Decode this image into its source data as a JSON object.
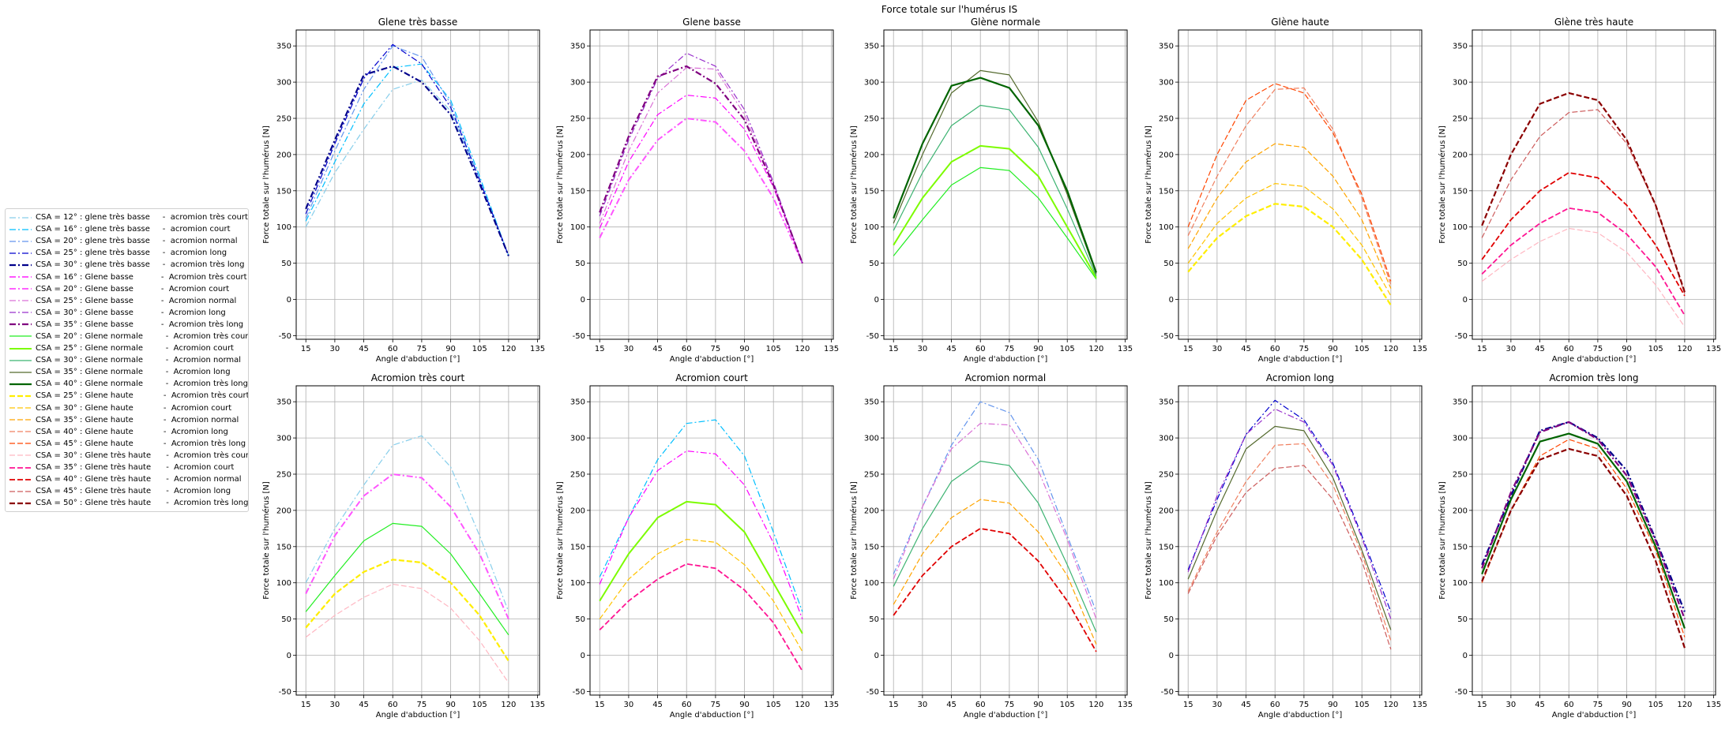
{
  "chart_data": {
    "type": "line",
    "suptitle": "Force totale sur l'humérus IS",
    "xlabel": "Angle d'abduction [°]",
    "ylabel": "Force totale sur l'humérus [N]",
    "xticks": [
      15,
      30,
      45,
      60,
      75,
      90,
      105,
      120,
      135
    ],
    "yticks": [
      -50,
      0,
      50,
      100,
      150,
      200,
      250,
      300,
      350
    ],
    "xlim": [
      10,
      136
    ],
    "ylim": [
      -55,
      372
    ],
    "grid": true,
    "legend_position": "left, outside plots",
    "x": [
      15,
      30,
      45,
      60,
      75,
      90,
      105,
      120
    ],
    "series": [
      {
        "name": "CSA = 12° : glene très basse     -  acromion très court",
        "color": "#87ceeb",
        "style": "dashdot",
        "width": 1.2,
        "row": 0,
        "col": 0,
        "values": [
          100,
          175,
          235,
          290,
          303,
          260,
          165,
          60
        ]
      },
      {
        "name": "CSA = 16° : glene très basse     -  acromion court",
        "color": "#00bfff",
        "style": "dashdot",
        "width": 1.2,
        "row": 0,
        "col": 1,
        "values": [
          108,
          190,
          270,
          320,
          325,
          275,
          170,
          60
        ]
      },
      {
        "name": "CSA = 20° : glene très basse     -  acromion normal",
        "color": "#6495ed",
        "style": "dashdot",
        "width": 1.2,
        "row": 0,
        "col": 2,
        "values": [
          112,
          205,
          290,
          350,
          335,
          270,
          165,
          60
        ]
      },
      {
        "name": "CSA = 25° : glene très basse     -  acromion long",
        "color": "#0000cd",
        "style": "dashdot",
        "width": 1.2,
        "row": 0,
        "col": 3,
        "values": [
          118,
          215,
          305,
          352,
          325,
          265,
          165,
          60
        ]
      },
      {
        "name": "CSA = 30° : glene très basse     -  acromion très long",
        "color": "#00008b",
        "style": "dashdot",
        "width": 2.2,
        "row": 0,
        "col": 4,
        "values": [
          125,
          220,
          310,
          322,
          300,
          255,
          160,
          60
        ]
      },
      {
        "name": "CSA = 16° : Glene basse           -  Acromion très court",
        "color": "#ff55ff",
        "style": "dashdot",
        "width": 2.0,
        "row": 1,
        "col": 0,
        "values": [
          85,
          165,
          220,
          250,
          245,
          205,
          140,
          50
        ]
      },
      {
        "name": "CSA = 20° : Glene basse           -  Acromion court",
        "color": "#ff00ff",
        "style": "dashdot",
        "width": 1.2,
        "row": 1,
        "col": 1,
        "values": [
          98,
          190,
          255,
          282,
          278,
          235,
          155,
          50
        ]
      },
      {
        "name": "CSA = 25° : Glene basse           -  Acromion normal",
        "color": "#da70d6",
        "style": "dashdot",
        "width": 1.2,
        "row": 1,
        "col": 2,
        "values": [
          105,
          205,
          285,
          320,
          318,
          255,
          160,
          50
        ]
      },
      {
        "name": "CSA = 30° : Glene basse           -  Acromion long",
        "color": "#9932cc",
        "style": "dashdot",
        "width": 1.2,
        "row": 1,
        "col": 3,
        "values": [
          115,
          220,
          305,
          340,
          322,
          262,
          162,
          50
        ]
      },
      {
        "name": "CSA = 35° : Glene basse           -  Acromion très long",
        "color": "#800080",
        "style": "dashdot",
        "width": 2.2,
        "row": 1,
        "col": 4,
        "values": [
          120,
          225,
          308,
          322,
          298,
          248,
          158,
          50
        ]
      },
      {
        "name": "CSA = 20° : Glene normale         -  Acromion très court",
        "color": "#22ee22",
        "style": "solid",
        "width": 1.2,
        "row": 2,
        "col": 0,
        "values": [
          60,
          110,
          158,
          182,
          178,
          140,
          85,
          28
        ]
      },
      {
        "name": "CSA = 25° : Glene normale         -  Acromion court",
        "color": "#7cfc00",
        "style": "solid",
        "width": 2.0,
        "row": 2,
        "col": 1,
        "values": [
          75,
          140,
          190,
          212,
          208,
          170,
          100,
          30
        ]
      },
      {
        "name": "CSA = 30° : Glene normale         -  Acromion normal",
        "color": "#3cb371",
        "style": "solid",
        "width": 1.2,
        "row": 2,
        "col": 2,
        "values": [
          95,
          175,
          240,
          268,
          262,
          210,
          125,
          32
        ]
      },
      {
        "name": "CSA = 35° : Glene normale         -  Acromion long",
        "color": "#556b2f",
        "style": "solid",
        "width": 1.2,
        "row": 2,
        "col": 3,
        "values": [
          105,
          200,
          285,
          316,
          310,
          245,
          145,
          35
        ]
      },
      {
        "name": "CSA = 40° : Glene normale         -  Acromion très long",
        "color": "#006400",
        "style": "solid",
        "width": 2.2,
        "row": 2,
        "col": 4,
        "values": [
          112,
          215,
          295,
          306,
          292,
          240,
          150,
          37
        ]
      },
      {
        "name": "CSA = 25° : Glene haute            -  Acromion très court",
        "color": "#ffee00",
        "style": "dashed",
        "width": 2.2,
        "row": 3,
        "col": 0,
        "values": [
          38,
          85,
          115,
          132,
          128,
          100,
          55,
          -8
        ]
      },
      {
        "name": "CSA = 30° : Glene haute            -  Acromion court",
        "color": "#ffc300",
        "style": "dashed",
        "width": 1.2,
        "row": 3,
        "col": 1,
        "values": [
          50,
          105,
          140,
          160,
          156,
          125,
          75,
          5
        ]
      },
      {
        "name": "CSA = 35° : Glene haute            -  Acromion normal",
        "color": "#ffa500",
        "style": "dashed",
        "width": 1.2,
        "row": 3,
        "col": 2,
        "values": [
          70,
          140,
          190,
          215,
          210,
          170,
          110,
          15
        ]
      },
      {
        "name": "CSA = 40° : Glene haute            -  Acromion long",
        "color": "#f08060",
        "style": "dashed",
        "width": 1.2,
        "row": 3,
        "col": 3,
        "values": [
          88,
          170,
          240,
          290,
          292,
          235,
          140,
          20
        ]
      },
      {
        "name": "CSA = 45° : Glene haute            -  Acromion très long",
        "color": "#ff4500",
        "style": "dashed",
        "width": 1.2,
        "row": 3,
        "col": 4,
        "values": [
          100,
          200,
          275,
          298,
          285,
          230,
          145,
          25
        ]
      },
      {
        "name": "CSA = 30° : Glene très haute      -  Acromion très court",
        "color": "#ffb6c1",
        "style": "dashed",
        "width": 1.2,
        "row": 4,
        "col": 0,
        "values": [
          25,
          55,
          80,
          98,
          92,
          65,
          20,
          -38
        ]
      },
      {
        "name": "CSA = 35° : Glene très haute      -  Acromion court",
        "color": "#ff1493",
        "style": "dashed",
        "width": 1.8,
        "row": 4,
        "col": 1,
        "values": [
          35,
          75,
          105,
          126,
          120,
          90,
          45,
          -22
        ]
      },
      {
        "name": "CSA = 40° : Glene très haute      -  Acromion normal",
        "color": "#e00000",
        "style": "dashed",
        "width": 1.8,
        "row": 4,
        "col": 2,
        "values": [
          55,
          110,
          150,
          175,
          168,
          130,
          75,
          5
        ]
      },
      {
        "name": "CSA = 45° : Glene très haute      -  Acromion long",
        "color": "#cd5c5c",
        "style": "dashed",
        "width": 1.2,
        "row": 4,
        "col": 3,
        "values": [
          85,
          165,
          225,
          258,
          262,
          215,
          130,
          8
        ]
      },
      {
        "name": "CSA = 50° : Glene très haute      -  Acromion très long",
        "color": "#8b0000",
        "style": "dashed",
        "width": 2.2,
        "row": 4,
        "col": 4,
        "values": [
          102,
          200,
          270,
          285,
          275,
          220,
          130,
          10
        ]
      }
    ],
    "subplots": [
      {
        "title": "Glene très basse",
        "row": 0,
        "group_by": "row",
        "index": 0
      },
      {
        "title": "Glene basse",
        "row": 0,
        "group_by": "row",
        "index": 1
      },
      {
        "title": "Glène normale",
        "row": 0,
        "group_by": "row",
        "index": 2
      },
      {
        "title": "Glène haute",
        "row": 0,
        "group_by": "row",
        "index": 3
      },
      {
        "title": "Glène très haute",
        "row": 0,
        "group_by": "row",
        "index": 4
      },
      {
        "title": "Acromion très court",
        "row": 1,
        "group_by": "col",
        "index": 0
      },
      {
        "title": "Acromion court",
        "row": 1,
        "group_by": "col",
        "index": 1
      },
      {
        "title": "Acromion normal",
        "row": 1,
        "group_by": "col",
        "index": 2
      },
      {
        "title": "Acromion long",
        "row": 1,
        "group_by": "col",
        "index": 3
      },
      {
        "title": "Acromion très long",
        "row": 1,
        "group_by": "col",
        "index": 4
      }
    ]
  }
}
